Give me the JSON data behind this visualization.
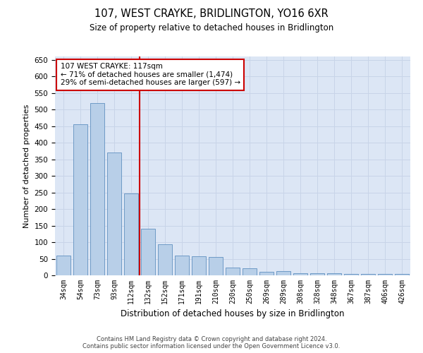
{
  "title": "107, WEST CRAYKE, BRIDLINGTON, YO16 6XR",
  "subtitle": "Size of property relative to detached houses in Bridlington",
  "xlabel": "Distribution of detached houses by size in Bridlington",
  "ylabel": "Number of detached properties",
  "footer_line1": "Contains HM Land Registry data © Crown copyright and database right 2024.",
  "footer_line2": "Contains public sector information licensed under the Open Government Licence v3.0.",
  "categories": [
    "34sqm",
    "54sqm",
    "73sqm",
    "93sqm",
    "112sqm",
    "132sqm",
    "152sqm",
    "171sqm",
    "191sqm",
    "210sqm",
    "230sqm",
    "250sqm",
    "269sqm",
    "289sqm",
    "308sqm",
    "328sqm",
    "348sqm",
    "367sqm",
    "387sqm",
    "406sqm",
    "426sqm"
  ],
  "values": [
    60,
    455,
    520,
    370,
    248,
    140,
    93,
    60,
    57,
    55,
    23,
    22,
    10,
    12,
    7,
    6,
    6,
    5,
    4,
    4,
    4
  ],
  "bar_color": "#b8cfe8",
  "bar_edge_color": "#6090c0",
  "grid_color": "#c8d4e8",
  "background_color": "#dce6f5",
  "red_line_x": 4.5,
  "red_line_color": "#cc0000",
  "annotation_line1": "107 WEST CRAYKE: 117sqm",
  "annotation_line2": "← 71% of detached houses are smaller (1,474)",
  "annotation_line3": "29% of semi-detached houses are larger (597) →",
  "annotation_box_color": "#cc0000",
  "ylim": [
    0,
    660
  ],
  "yticks": [
    0,
    50,
    100,
    150,
    200,
    250,
    300,
    350,
    400,
    450,
    500,
    550,
    600,
    650
  ]
}
